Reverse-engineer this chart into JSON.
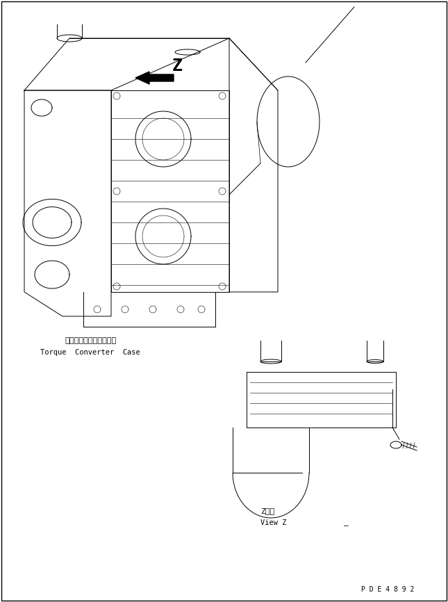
{
  "bg_color": "#ffffff",
  "line_color": "#000000",
  "figsize": [
    6.45,
    8.66
  ],
  "dpi": 100,
  "label_japanese1": "トルクコンバータケース",
  "label_english1": "Torque  Converter  Case",
  "label_japanese2": "Z　視",
  "label_english2": "View Z",
  "part_number": "P D E 4 8 9 2",
  "z_label": "Z",
  "dash_label": "_"
}
